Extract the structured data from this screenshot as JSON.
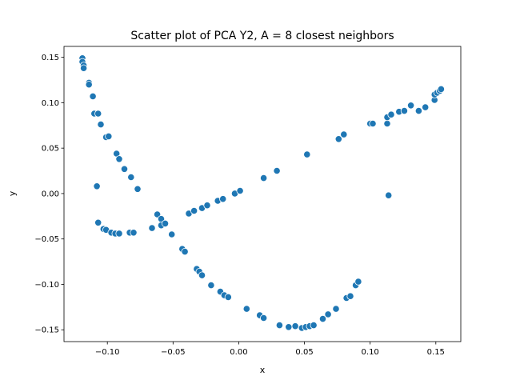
{
  "chart_data": {
    "type": "scatter",
    "title": "Scatter plot of PCA Y2, A = 8 closest neighbors",
    "xlabel": "x",
    "ylabel": "y",
    "xlim": [
      -0.133,
      0.169
    ],
    "ylim": [
      -0.163,
      0.162
    ],
    "xticks": [
      -0.1,
      -0.05,
      0.0,
      0.05,
      0.1,
      0.15
    ],
    "xtick_labels": [
      "−0.10",
      "−0.05",
      "0.00",
      "0.05",
      "0.10",
      "0.15"
    ],
    "yticks": [
      -0.15,
      -0.1,
      -0.05,
      0.0,
      0.05,
      0.1,
      0.15
    ],
    "ytick_labels": [
      "−0.15",
      "−0.10",
      "−0.05",
      "0.00",
      "0.05",
      "0.10",
      "0.15"
    ],
    "grid": false,
    "marker_color": "#1f77b4",
    "marker_edge_color": "#ffffff",
    "points": [
      [
        -0.119,
        0.149
      ],
      [
        -0.119,
        0.145
      ],
      [
        -0.118,
        0.141
      ],
      [
        -0.118,
        0.138
      ],
      [
        -0.114,
        0.122
      ],
      [
        -0.114,
        0.12
      ],
      [
        -0.111,
        0.107
      ],
      [
        -0.11,
        0.088
      ],
      [
        -0.107,
        0.088
      ],
      [
        -0.105,
        0.076
      ],
      [
        -0.101,
        0.062
      ],
      [
        -0.099,
        0.063
      ],
      [
        -0.093,
        0.044
      ],
      [
        -0.091,
        0.038
      ],
      [
        -0.087,
        0.027
      ],
      [
        -0.082,
        0.018
      ],
      [
        -0.077,
        0.005
      ],
      [
        -0.108,
        0.008
      ],
      [
        -0.107,
        -0.032
      ],
      [
        -0.103,
        -0.039
      ],
      [
        -0.101,
        -0.04
      ],
      [
        -0.097,
        -0.043
      ],
      [
        -0.094,
        -0.044
      ],
      [
        -0.091,
        -0.044
      ],
      [
        -0.083,
        -0.043
      ],
      [
        -0.08,
        -0.043
      ],
      [
        -0.066,
        -0.038
      ],
      [
        -0.062,
        -0.023
      ],
      [
        -0.059,
        -0.028
      ],
      [
        -0.059,
        -0.035
      ],
      [
        -0.056,
        -0.033
      ],
      [
        -0.051,
        -0.045
      ],
      [
        -0.043,
        -0.061
      ],
      [
        -0.041,
        -0.064
      ],
      [
        -0.032,
        -0.083
      ],
      [
        -0.03,
        -0.086
      ],
      [
        -0.028,
        -0.09
      ],
      [
        -0.021,
        -0.101
      ],
      [
        -0.014,
        -0.108
      ],
      [
        -0.011,
        -0.112
      ],
      [
        -0.008,
        -0.114
      ],
      [
        0.006,
        -0.127
      ],
      [
        0.016,
        -0.134
      ],
      [
        0.019,
        -0.137
      ],
      [
        0.031,
        -0.145
      ],
      [
        0.038,
        -0.147
      ],
      [
        0.043,
        -0.146
      ],
      [
        0.048,
        -0.148
      ],
      [
        0.051,
        -0.147
      ],
      [
        0.054,
        -0.146
      ],
      [
        0.057,
        -0.145
      ],
      [
        0.064,
        -0.138
      ],
      [
        0.068,
        -0.133
      ],
      [
        0.074,
        -0.127
      ],
      [
        0.082,
        -0.115
      ],
      [
        0.085,
        -0.113
      ],
      [
        0.089,
        -0.101
      ],
      [
        0.091,
        -0.097
      ],
      [
        -0.038,
        -0.022
      ],
      [
        -0.034,
        -0.019
      ],
      [
        -0.028,
        -0.016
      ],
      [
        -0.024,
        -0.013
      ],
      [
        -0.016,
        -0.008
      ],
      [
        -0.012,
        -0.006
      ],
      [
        -0.003,
        0.0
      ],
      [
        0.001,
        0.003
      ],
      [
        0.019,
        0.017
      ],
      [
        0.029,
        0.025
      ],
      [
        0.052,
        0.043
      ],
      [
        0.076,
        0.06
      ],
      [
        0.08,
        0.065
      ],
      [
        0.1,
        0.077
      ],
      [
        0.102,
        0.077
      ],
      [
        0.113,
        0.077
      ],
      [
        0.113,
        0.084
      ],
      [
        0.116,
        0.087
      ],
      [
        0.122,
        0.09
      ],
      [
        0.126,
        0.091
      ],
      [
        0.131,
        0.097
      ],
      [
        0.137,
        0.091
      ],
      [
        0.142,
        0.095
      ],
      [
        0.149,
        0.103
      ],
      [
        0.149,
        0.109
      ],
      [
        0.151,
        0.111
      ],
      [
        0.153,
        0.113
      ],
      [
        0.154,
        0.115
      ],
      [
        0.114,
        -0.002
      ]
    ]
  }
}
